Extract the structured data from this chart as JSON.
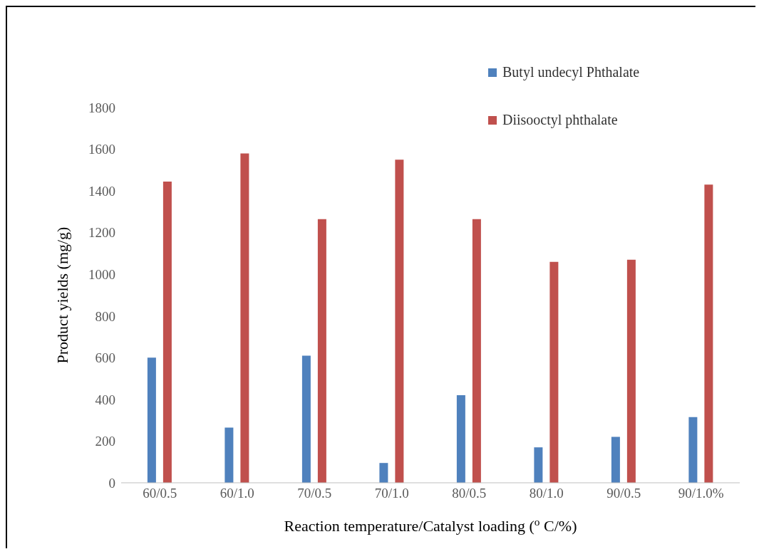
{
  "chart_data": {
    "type": "bar",
    "xlabel": "Reaction temperature/Catalyst loading ($^{o}$C/%)",
    "ylabel": "Product yields (mg/g)",
    "categories": [
      "60/0.5",
      "60/1.0",
      "70/0.5",
      "70/1.0",
      "80/0.5",
      "80/1.0",
      "90/0.5",
      "90/1.0%"
    ],
    "series": [
      {
        "name": "Butyl undecyl Phthalate",
        "color": "#4f81bd",
        "values": [
          600,
          265,
          610,
          95,
          420,
          170,
          220,
          315
        ]
      },
      {
        "name": "Diisooctyl phthalate",
        "color": "#c0504d",
        "values": [
          1445,
          1580,
          1265,
          1550,
          1265,
          1060,
          1070,
          1430
        ]
      }
    ],
    "ylim": [
      0,
      1800
    ],
    "yticks": [
      0,
      200,
      400,
      600,
      800,
      1000,
      1200,
      1400,
      1600,
      1800
    ],
    "grid": false,
    "legend": "top right"
  }
}
